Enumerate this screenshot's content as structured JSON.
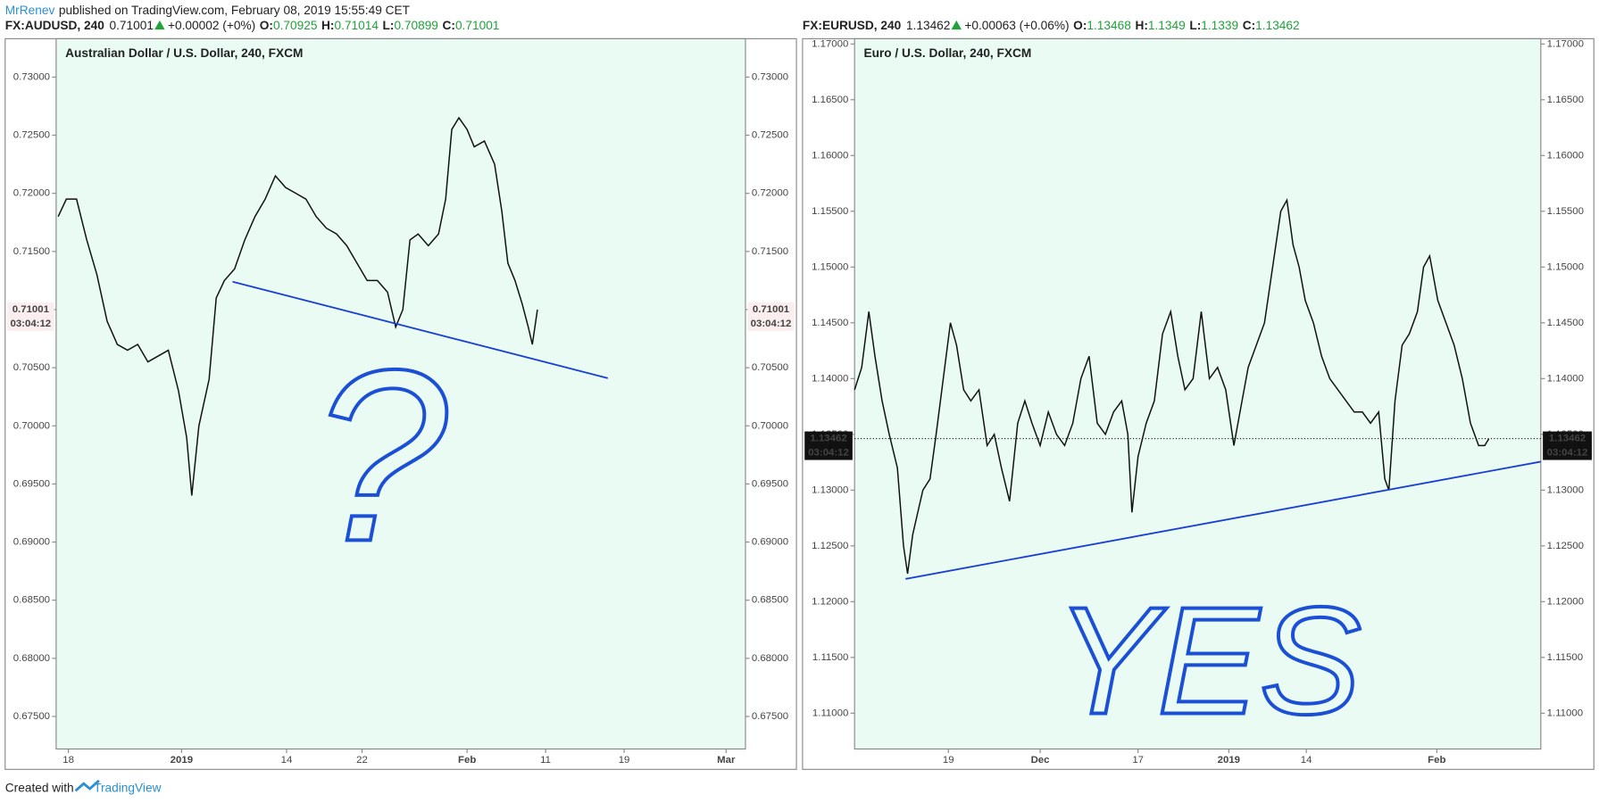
{
  "header": {
    "author": "MrRenev",
    "published": "published on TradingView.com, February 08, 2019 15:55:49 CET"
  },
  "footer": {
    "created": "Created with",
    "brand": "TradingView"
  },
  "chart_data": [
    {
      "type": "line",
      "symbol": "FX:AUDUSD, 240",
      "last": 0.71001,
      "change": "+0.00002 (+0%)",
      "ohlc": [
        {
          "label": "O:",
          "value": 0.70925
        },
        {
          "label": "H:",
          "value": 0.71014
        },
        {
          "label": "L:",
          "value": 0.70899
        },
        {
          "label": "C:",
          "value": 0.71001
        }
      ],
      "title": "Australian Dollar / U.S. Dollar, 240, FXCM",
      "countdown": "03:04:12",
      "annotation": "?",
      "color": "#111111",
      "trend_color": "#1a3fd6",
      "x": [
        2,
        10,
        20,
        30,
        40,
        50,
        60,
        70,
        80,
        90,
        100,
        110,
        120,
        128,
        133,
        140,
        150,
        157,
        165,
        175,
        185,
        195,
        205,
        215,
        225,
        235,
        245,
        255,
        265,
        275,
        285,
        295,
        305,
        315,
        325,
        333,
        340,
        347,
        355,
        365,
        375,
        382,
        388,
        395,
        403,
        410,
        420,
        430,
        437,
        443,
        450,
        457,
        463,
        467,
        472
      ],
      "values": [
        0.718,
        0.7195,
        0.7195,
        0.716,
        0.713,
        0.709,
        0.707,
        0.7065,
        0.707,
        0.7055,
        0.706,
        0.7065,
        0.703,
        0.699,
        0.694,
        0.7,
        0.704,
        0.711,
        0.7125,
        0.7135,
        0.716,
        0.718,
        0.7195,
        0.7215,
        0.7205,
        0.72,
        0.7195,
        0.718,
        0.717,
        0.7165,
        0.7155,
        0.714,
        0.7125,
        0.7125,
        0.7115,
        0.7085,
        0.71,
        0.716,
        0.7165,
        0.7155,
        0.7165,
        0.7195,
        0.7255,
        0.7265,
        0.7255,
        0.724,
        0.7245,
        0.7225,
        0.7185,
        0.714,
        0.7125,
        0.7105,
        0.7085,
        0.707,
        0.71
      ],
      "trendline": {
        "x": [
          173,
          541
        ],
        "y": [
          0.7124,
          0.7041
        ]
      },
      "xlim": [
        0,
        676
      ],
      "xticks": [
        {
          "value": 12,
          "label": "18"
        },
        {
          "value": 123,
          "label": "2019"
        },
        {
          "value": 226,
          "label": "14"
        },
        {
          "value": 300,
          "label": "22"
        },
        {
          "value": 403,
          "label": "Feb"
        },
        {
          "value": 480,
          "label": "11"
        },
        {
          "value": 557,
          "label": "19"
        },
        {
          "value": 657,
          "label": "Mar"
        }
      ],
      "ylim": [
        0.6722,
        0.7333
      ],
      "yticks": [
        {
          "value": 0.675,
          "label": "0.67500"
        },
        {
          "value": 0.68,
          "label": "0.68000"
        },
        {
          "value": 0.685,
          "label": "0.68500"
        },
        {
          "value": 0.69,
          "label": "0.69000"
        },
        {
          "value": 0.695,
          "label": "0.69500"
        },
        {
          "value": 0.7,
          "label": "0.70000"
        },
        {
          "value": 0.705,
          "label": "0.70500"
        },
        {
          "value": 0.71,
          "label": "0.71000"
        },
        {
          "value": 0.715,
          "label": "0.71500"
        },
        {
          "value": 0.72,
          "label": "0.72000"
        },
        {
          "value": 0.725,
          "label": "0.72500"
        },
        {
          "value": 0.73,
          "label": "0.73000"
        }
      ]
    },
    {
      "type": "line",
      "symbol": "FX:EURUSD, 240",
      "last": 1.13462,
      "change": "+0.00063 (+0.06%)",
      "ohlc": [
        {
          "label": "O:",
          "value": 1.13468
        },
        {
          "label": "H:",
          "value": 1.1349
        },
        {
          "label": "L:",
          "value": 1.1339
        },
        {
          "label": "C:",
          "value": 1.13462
        }
      ],
      "title": "Euro / U.S. Dollar, 240, FXCM",
      "countdown": "03:04:12",
      "annotation": "YES",
      "color": "#111111",
      "trend_color": "#1a3fd6",
      "x": [
        51,
        58,
        65,
        71,
        78,
        85,
        93,
        99,
        103,
        108,
        113,
        118,
        125,
        131,
        138,
        145,
        151,
        158,
        165,
        173,
        181,
        188,
        195,
        203,
        211,
        218,
        225,
        233,
        241,
        249,
        257,
        265,
        273,
        281,
        289,
        297,
        305,
        313,
        319,
        323,
        329,
        337,
        345,
        353,
        361,
        368,
        375,
        383,
        391,
        399,
        407,
        415,
        423,
        429,
        437,
        445,
        453,
        461,
        469,
        475,
        481,
        487,
        493,
        501,
        509,
        517,
        525,
        533,
        541,
        549,
        557,
        565,
        571,
        575,
        581,
        588,
        595,
        603,
        609,
        615,
        623,
        631,
        639,
        647,
        655,
        663,
        669,
        673
      ],
      "values": [
        1.139,
        1.141,
        1.146,
        1.142,
        1.138,
        1.135,
        1.132,
        1.125,
        1.1225,
        1.126,
        1.128,
        1.13,
        1.131,
        1.135,
        1.14,
        1.145,
        1.143,
        1.139,
        1.138,
        1.139,
        1.134,
        1.135,
        1.132,
        1.129,
        1.136,
        1.138,
        1.136,
        1.134,
        1.137,
        1.135,
        1.134,
        1.136,
        1.14,
        1.142,
        1.136,
        1.135,
        1.137,
        1.138,
        1.135,
        1.128,
        1.133,
        1.136,
        1.138,
        1.144,
        1.146,
        1.142,
        1.139,
        1.14,
        1.146,
        1.14,
        1.141,
        1.139,
        1.134,
        1.137,
        1.141,
        1.143,
        1.145,
        1.15,
        1.155,
        1.156,
        1.152,
        1.15,
        1.147,
        1.145,
        1.142,
        1.14,
        1.139,
        1.138,
        1.137,
        1.137,
        1.136,
        1.137,
        1.131,
        1.13,
        1.138,
        1.143,
        1.144,
        1.146,
        1.15,
        1.151,
        1.147,
        1.145,
        1.143,
        1.14,
        1.136,
        1.134,
        1.134,
        1.1346
      ],
      "trendline": {
        "x": [
          101,
          724
        ],
        "y": [
          1.12204,
          1.13255
        ]
      },
      "xlim": [
        51,
        724
      ],
      "xticks": [
        {
          "value": 143,
          "label": "19"
        },
        {
          "value": 233,
          "label": "Dec"
        },
        {
          "value": 329,
          "label": "17"
        },
        {
          "value": 418,
          "label": "2019"
        },
        {
          "value": 494,
          "label": "14"
        },
        {
          "value": 622,
          "label": "Feb"
        }
      ],
      "ylim": [
        1.10679,
        1.17047
      ],
      "yticks": [
        {
          "value": 1.11,
          "label": "1.11000"
        },
        {
          "value": 1.115,
          "label": "1.11500"
        },
        {
          "value": 1.12,
          "label": "1.12000"
        },
        {
          "value": 1.125,
          "label": "1.12500"
        },
        {
          "value": 1.13,
          "label": "1.13000"
        },
        {
          "value": 1.135,
          "label": "1.13500"
        },
        {
          "value": 1.14,
          "label": "1.14000"
        },
        {
          "value": 1.145,
          "label": "1.14500"
        },
        {
          "value": 1.15,
          "label": "1.15000"
        },
        {
          "value": 1.155,
          "label": "1.15500"
        },
        {
          "value": 1.16,
          "label": "1.16000"
        },
        {
          "value": 1.165,
          "label": "1.16500"
        },
        {
          "value": 1.17,
          "label": "1.17000"
        }
      ]
    }
  ]
}
